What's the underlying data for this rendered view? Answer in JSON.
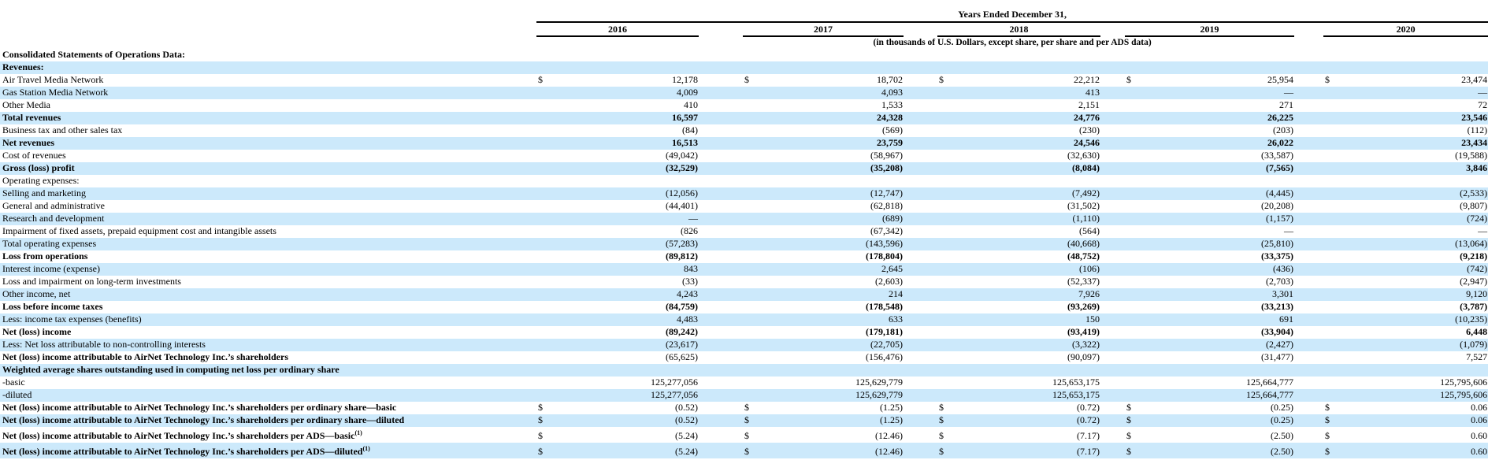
{
  "colors": {
    "stripe": "#cce9fb",
    "text": "#000000",
    "rule": "#000000"
  },
  "header": {
    "years_ended_label": "Years Ended December 31,",
    "unit_note": "(in thousands of U.S. Dollars, except share, per share and per ADS data)",
    "years": [
      "2016",
      "2017",
      "2018",
      "2019",
      "2020"
    ]
  },
  "table": {
    "currency_symbol": "$",
    "rows": [
      {
        "label": "Consolidated Statements of Operations Data:",
        "bold": "row",
        "dollar": false,
        "values": []
      },
      {
        "label": "Revenues:",
        "bold": "row",
        "dollar": false,
        "values": []
      },
      {
        "label": "Air Travel Media Network",
        "bold": "none",
        "dollar": true,
        "values": [
          "12,178",
          "18,702",
          "22,212",
          "25,954",
          "23,474"
        ]
      },
      {
        "label": "Gas Station Media Network",
        "bold": "none",
        "dollar": false,
        "values": [
          "4,009",
          "4,093",
          "413",
          "—",
          "—"
        ]
      },
      {
        "label": "Other Media",
        "bold": "none",
        "dollar": false,
        "values": [
          "410",
          "1,533",
          "2,151",
          "271",
          "72"
        ]
      },
      {
        "label": "Total revenues",
        "bold": "row",
        "dollar": false,
        "values": [
          "16,597",
          "24,328",
          "24,776",
          "26,225",
          "23,546"
        ]
      },
      {
        "label": "Business tax and other sales tax",
        "bold": "none",
        "dollar": false,
        "values": [
          "(84)",
          "(569)",
          "(230)",
          "(203)",
          "(112)"
        ]
      },
      {
        "label": "Net revenues",
        "bold": "row",
        "dollar": false,
        "values": [
          "16,513",
          "23,759",
          "24,546",
          "26,022",
          "23,434"
        ]
      },
      {
        "label": "Cost of revenues",
        "bold": "none",
        "dollar": false,
        "values": [
          "(49,042)",
          "(58,967)",
          "(32,630)",
          "(33,587)",
          "(19,588)"
        ]
      },
      {
        "label": "Gross (loss) profit",
        "bold": "row",
        "dollar": false,
        "values": [
          "(32,529)",
          "(35,208)",
          "(8,084)",
          "(7,565)",
          "3,846"
        ]
      },
      {
        "label": "Operating expenses:",
        "bold": "none",
        "dollar": false,
        "values": []
      },
      {
        "label": "Selling and marketing",
        "bold": "none",
        "dollar": false,
        "values": [
          "(12,056)",
          "(12,747)",
          "(7,492)",
          "(4,445)",
          "(2,533)"
        ]
      },
      {
        "label": "General and administrative",
        "bold": "none",
        "dollar": false,
        "values": [
          "(44,401)",
          "(62,818)",
          "(31,502)",
          "(20,208)",
          "(9,807)"
        ]
      },
      {
        "label": "Research and development",
        "bold": "none",
        "dollar": false,
        "values": [
          "—",
          "(689)",
          "(1,110)",
          "(1,157)",
          "(724)"
        ]
      },
      {
        "label": "Impairment of fixed assets, prepaid equipment cost and intangible assets",
        "bold": "none",
        "dollar": false,
        "values": [
          "(826",
          "(67,342)",
          "(564)",
          "—",
          "—"
        ]
      },
      {
        "label": "Total operating expenses",
        "bold": "none",
        "dollar": false,
        "values": [
          "(57,283)",
          "(143,596)",
          "(40,668)",
          "(25,810)",
          "(13,064)"
        ]
      },
      {
        "label": "Loss from operations",
        "bold": "row",
        "dollar": false,
        "values": [
          "(89,812)",
          "(178,804)",
          "(48,752)",
          "(33,375)",
          "(9,218)"
        ]
      },
      {
        "label": "Interest income (expense)",
        "bold": "none",
        "dollar": false,
        "values": [
          "843",
          "2,645",
          "(106)",
          "(436)",
          "(742)"
        ]
      },
      {
        "label": "Loss and impairment on long-term investments",
        "bold": "none",
        "dollar": false,
        "values": [
          "(33)",
          "(2,603)",
          "(52,337)",
          "(2,703)",
          "(2,947)"
        ]
      },
      {
        "label": "Other income, net",
        "bold": "none",
        "dollar": false,
        "values": [
          "4,243",
          "214",
          "7,926",
          "3,301",
          "9,120"
        ]
      },
      {
        "label": "Loss before income taxes",
        "bold": "row",
        "dollar": false,
        "values": [
          "(84,759)",
          "(178,548)",
          "(93,269)",
          "(33,213)",
          "(3,787)"
        ]
      },
      {
        "label": "Less: income tax expenses (benefits)",
        "bold": "none",
        "dollar": false,
        "values": [
          "4,483",
          "633",
          "150",
          "691",
          "(10,235)"
        ]
      },
      {
        "label": "Net (loss) income",
        "bold": "row",
        "dollar": false,
        "values": [
          "(89,242)",
          "(179,181)",
          "(93,419)",
          "(33,904)",
          "6,448"
        ]
      },
      {
        "label": "Less: Net loss attributable to non-controlling interests",
        "bold": "none",
        "dollar": false,
        "values": [
          "(23,617)",
          "(22,705)",
          "(3,322)",
          "(2,427)",
          "(1,079)"
        ]
      },
      {
        "label": "Net (loss) income attributable to AirNet Technology Inc.’s shareholders",
        "bold": "label",
        "dollar": false,
        "values": [
          "(65,625)",
          "(156,476)",
          "(90,097)",
          "(31,477)",
          "7,527"
        ]
      },
      {
        "label": "Weighted average shares outstanding used in computing net loss per ordinary share",
        "bold": "label",
        "dollar": false,
        "values": []
      },
      {
        "label": "-basic",
        "bold": "none",
        "dollar": false,
        "values": [
          "125,277,056",
          "125,629,779",
          "125,653,175",
          "125,664,777",
          "125,795,606"
        ]
      },
      {
        "label": "-diluted",
        "bold": "none",
        "dollar": false,
        "values": [
          "125,277,056",
          "125,629,779",
          "125,653,175",
          "125,664,777",
          "125,795,606"
        ]
      },
      {
        "label": "Net (loss) income attributable to AirNet Technology Inc.’s shareholders per ordinary share—basic",
        "bold": "label",
        "dollar": true,
        "values": [
          "(0.52)",
          "(1.25)",
          "(0.72)",
          "(0.25)",
          "0.06"
        ]
      },
      {
        "label": "Net (loss) income attributable to AirNet Technology Inc.’s shareholders per ordinary share—diluted",
        "bold": "label",
        "dollar": true,
        "values": [
          "(0.52)",
          "(1.25)",
          "(0.72)",
          "(0.25)",
          "0.06"
        ]
      },
      {
        "label": "Net (loss) income attributable to AirNet Technology Inc.’s shareholders per ADS—basic",
        "sup": "(1)",
        "tall": true,
        "bold": "label",
        "dollar": true,
        "values": [
          "(5.24)",
          "(12.46)",
          "(7.17)",
          "(2.50)",
          "0.60"
        ]
      },
      {
        "label": "Net (loss) income attributable to AirNet Technology Inc.’s shareholders per ADS—diluted",
        "sup": "(1)",
        "tall": true,
        "bold": "label",
        "dollar": true,
        "values": [
          "(5.24)",
          "(12.46)",
          "(7.17)",
          "(2.50)",
          "0.60"
        ]
      }
    ]
  }
}
